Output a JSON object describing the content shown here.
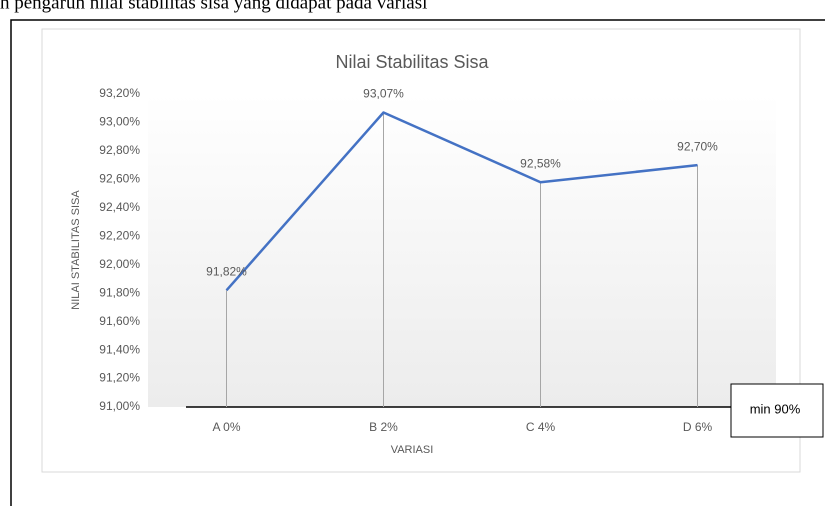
{
  "page_text": "h pengaruh nilai stabilitas sisa yang didapat pada variasi",
  "chart_data": {
    "type": "line",
    "title": "Nilai Stabilitas Sisa",
    "y_label": "NILAI STABILITAS SISA",
    "x_label": "VARIASI",
    "categories": [
      "A 0%",
      "B 2%",
      "C 4%",
      "D 6%"
    ],
    "series": [
      {
        "name": "Nilai Stabilitas Sisa",
        "color": "#4472c4",
        "values": [
          91.82,
          93.07,
          92.58,
          92.7
        ],
        "value_labels": [
          "91,82%",
          "93,07%",
          "92,58%",
          "92,70%"
        ]
      }
    ],
    "ylim": [
      91,
      93.2
    ],
    "yticks": [
      {
        "value": 91,
        "label": "91,00%"
      },
      {
        "value": 91.2,
        "label": "91,20%"
      },
      {
        "value": 91.4,
        "label": "91,40%"
      },
      {
        "value": 91.6,
        "label": "91,60%"
      },
      {
        "value": 91.8,
        "label": "91,80%"
      },
      {
        "value": 92,
        "label": "92,00%"
      },
      {
        "value": 92.2,
        "label": "92,20%"
      },
      {
        "value": 92.4,
        "label": "92,40%"
      },
      {
        "value": 92.6,
        "label": "92,60%"
      },
      {
        "value": 92.8,
        "label": "92,80%"
      },
      {
        "value": 93,
        "label": "93,00%"
      },
      {
        "value": 93.2,
        "label": "93,20%"
      }
    ],
    "drop_lines": true,
    "annotations": [
      "min 90%"
    ]
  }
}
